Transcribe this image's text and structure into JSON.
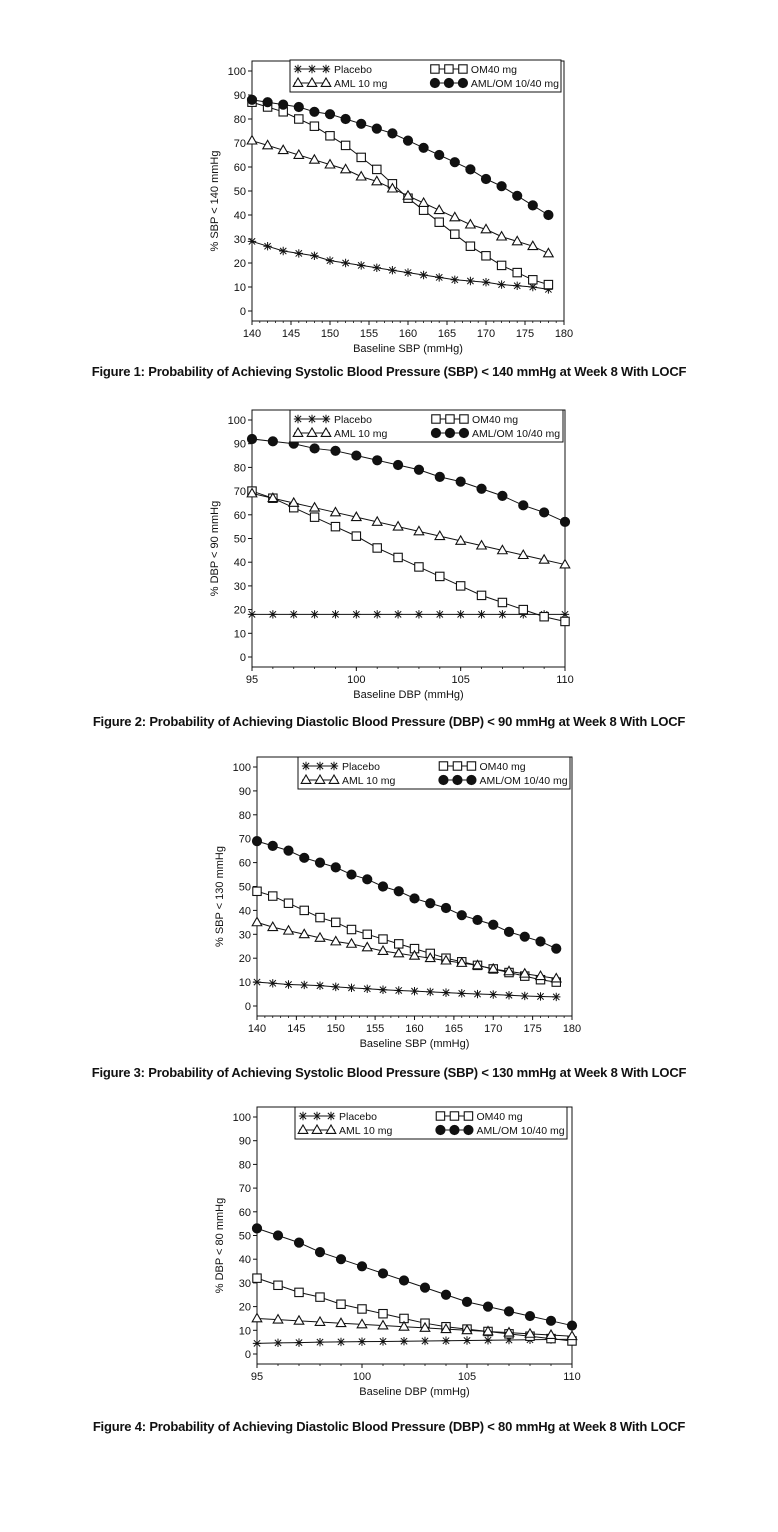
{
  "chart_data": [
    {
      "type": "line",
      "caption": "Figure 1: Probability of Achieving Systolic Blood Pressure (SBP) < 140 mmHg at Week 8 With LOCF",
      "xlabel": "Baseline SBP (mmHg)",
      "ylabel": "% SBP < 140 mmHg",
      "xlim": [
        140,
        180
      ],
      "ylim": [
        0,
        100
      ],
      "xticks": [
        "140",
        "145",
        "150",
        "155",
        "160",
        "165",
        "170",
        "175",
        "180"
      ],
      "yticks": [
        "0",
        "10",
        "20",
        "30",
        "40",
        "50",
        "60",
        "70",
        "80",
        "90",
        "100"
      ],
      "legend": "top",
      "x": [
        140,
        142,
        144,
        146,
        148,
        150,
        152,
        154,
        156,
        158,
        160,
        162,
        164,
        166,
        168,
        170,
        172,
        174,
        176,
        178
      ],
      "series": [
        {
          "name": "Placebo",
          "marker": "star",
          "values": [
            29,
            27,
            25,
            24,
            23,
            21,
            20,
            19,
            18,
            17,
            16,
            15,
            14,
            13,
            12.5,
            12,
            11,
            10.5,
            10,
            9
          ]
        },
        {
          "name": "OM40 mg",
          "marker": "square",
          "values": [
            87,
            85,
            83,
            80,
            77,
            73,
            69,
            64,
            59,
            53,
            47,
            42,
            37,
            32,
            27,
            23,
            19,
            16,
            13,
            11
          ]
        },
        {
          "name": "AML 10 mg",
          "marker": "triangle",
          "values": [
            71,
            69,
            67,
            65,
            63,
            61,
            59,
            56,
            54,
            51,
            48,
            45,
            42,
            39,
            36,
            34,
            31,
            29,
            27,
            24
          ]
        },
        {
          "name": "AML/OM 10/40 mg",
          "marker": "circle",
          "values": [
            88,
            87,
            86,
            85,
            83,
            82,
            80,
            78,
            76,
            74,
            71,
            68,
            65,
            62,
            59,
            55,
            52,
            48,
            44,
            40
          ]
        }
      ]
    },
    {
      "type": "line",
      "caption": "Figure 2: Probability of Achieving Diastolic Blood Pressure (DBP) < 90 mmHg at Week 8 With LOCF",
      "xlabel": "Baseline DBP (mmHg)",
      "ylabel": "% DBP < 90 mmHg",
      "xlim": [
        95,
        110
      ],
      "ylim": [
        0,
        100
      ],
      "xticks": [
        "95",
        "100",
        "105",
        "110"
      ],
      "yticks": [
        "0",
        "10",
        "20",
        "30",
        "40",
        "50",
        "60",
        "70",
        "80",
        "90",
        "100"
      ],
      "legend": "top",
      "x": [
        95,
        96,
        97,
        98,
        99,
        100,
        101,
        102,
        103,
        104,
        105,
        106,
        107,
        108,
        109,
        110
      ],
      "series": [
        {
          "name": "Placebo",
          "marker": "star",
          "values": [
            18,
            18,
            18,
            18,
            18,
            18,
            18,
            18,
            18,
            18,
            18,
            18,
            18,
            18,
            18,
            18
          ]
        },
        {
          "name": "OM40 mg",
          "marker": "square",
          "values": [
            70,
            67,
            63,
            59,
            55,
            51,
            46,
            42,
            38,
            34,
            30,
            26,
            23,
            20,
            17,
            15
          ]
        },
        {
          "name": "AML 10 mg",
          "marker": "triangle",
          "values": [
            69,
            67,
            65,
            63,
            61,
            59,
            57,
            55,
            53,
            51,
            49,
            47,
            45,
            43,
            41,
            39
          ]
        },
        {
          "name": "AML/OM 10/40 mg",
          "marker": "circle",
          "values": [
            92,
            91,
            90,
            88,
            87,
            85,
            83,
            81,
            79,
            76,
            74,
            71,
            68,
            64,
            61,
            57
          ]
        }
      ]
    },
    {
      "type": "line",
      "caption": "Figure 3: Probability of Achieving Systolic Blood Pressure (SBP) < 130 mmHg at Week 8 With LOCF",
      "xlabel": "Baseline SBP (mmHg)",
      "ylabel": "% SBP < 130 mmHg",
      "xlim": [
        140,
        180
      ],
      "ylim": [
        0,
        100
      ],
      "xticks": [
        "140",
        "145",
        "150",
        "155",
        "160",
        "165",
        "170",
        "175",
        "180"
      ],
      "yticks": [
        "0",
        "10",
        "20",
        "30",
        "40",
        "50",
        "60",
        "70",
        "80",
        "90",
        "100"
      ],
      "legend": "top",
      "x": [
        140,
        142,
        144,
        146,
        148,
        150,
        152,
        154,
        156,
        158,
        160,
        162,
        164,
        166,
        168,
        170,
        172,
        174,
        176,
        178
      ],
      "series": [
        {
          "name": "Placebo",
          "marker": "star",
          "values": [
            10,
            9.5,
            9,
            8.8,
            8.5,
            8,
            7.6,
            7.2,
            6.8,
            6.5,
            6.2,
            5.9,
            5.6,
            5.3,
            5,
            4.8,
            4.5,
            4.2,
            4,
            3.8
          ]
        },
        {
          "name": "OM40 mg",
          "marker": "square",
          "values": [
            48,
            46,
            43,
            40,
            37,
            35,
            32,
            30,
            28,
            26,
            24,
            22,
            20,
            18.5,
            17,
            15.5,
            14,
            12.5,
            11,
            10
          ]
        },
        {
          "name": "AML 10 mg",
          "marker": "triangle",
          "values": [
            35,
            33,
            31.5,
            30,
            28.5,
            27,
            26,
            24.5,
            23,
            22,
            21,
            20,
            19,
            18,
            17,
            15.5,
            14.5,
            13.5,
            12.5,
            11.5
          ]
        },
        {
          "name": "AML/OM 10/40 mg",
          "marker": "circle",
          "values": [
            69,
            67,
            65,
            62,
            60,
            58,
            55,
            53,
            50,
            48,
            45,
            43,
            41,
            38,
            36,
            34,
            31,
            29,
            27,
            24
          ]
        }
      ]
    },
    {
      "type": "line",
      "caption": "Figure 4: Probability of Achieving Diastolic Blood Pressure (DBP) < 80 mmHg at Week 8 With LOCF",
      "xlabel": "Baseline DBP (mmHg)",
      "ylabel": "% DBP < 80 mmHg",
      "xlim": [
        95,
        110
      ],
      "ylim": [
        0,
        100
      ],
      "xticks": [
        "95",
        "100",
        "105",
        "110"
      ],
      "yticks": [
        "0",
        "10",
        "20",
        "30",
        "40",
        "50",
        "60",
        "70",
        "80",
        "90",
        "100"
      ],
      "legend": "top",
      "x": [
        95,
        96,
        97,
        98,
        99,
        100,
        101,
        102,
        103,
        104,
        105,
        106,
        107,
        108,
        109,
        110
      ],
      "series": [
        {
          "name": "Placebo",
          "marker": "star",
          "values": [
            4.5,
            4.7,
            4.8,
            5,
            5.1,
            5.2,
            5.3,
            5.4,
            5.5,
            5.6,
            5.7,
            5.8,
            5.9,
            6,
            6.1,
            6.2
          ]
        },
        {
          "name": "OM40 mg",
          "marker": "square",
          "values": [
            32,
            29,
            26,
            24,
            21,
            19,
            17,
            15,
            13,
            11.5,
            10.5,
            9.5,
            8.5,
            7.5,
            6.5,
            5.5
          ]
        },
        {
          "name": "AML 10 mg",
          "marker": "triangle",
          "values": [
            15,
            14.5,
            14,
            13.5,
            13,
            12.5,
            12,
            11.5,
            11,
            10.5,
            10,
            9.5,
            9,
            8.5,
            8,
            7.5
          ]
        },
        {
          "name": "AML/OM 10/40 mg",
          "marker": "circle",
          "values": [
            53,
            50,
            47,
            43,
            40,
            37,
            34,
            31,
            28,
            25,
            22,
            20,
            18,
            16,
            14,
            12
          ]
        }
      ]
    }
  ]
}
